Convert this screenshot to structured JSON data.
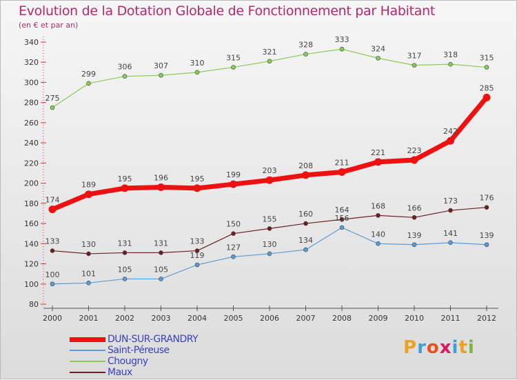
{
  "title": "Evolution de la Dotation Globale de Fonctionnement par Habitant",
  "subtitle": "(en € et par an)",
  "chart_data": {
    "type": "line",
    "title": "Evolution de la Dotation Globale de Fonctionnement par Habitant",
    "subtitle": "(en € et par an)",
    "x": [
      "2000",
      "2001",
      "2002",
      "2003",
      "2004",
      "2005",
      "2006",
      "2007",
      "2008",
      "2009",
      "2010",
      "2011",
      "2012"
    ],
    "ylim": [
      80,
      340
    ],
    "yticks": [
      80,
      100,
      120,
      140,
      160,
      180,
      200,
      220,
      240,
      260,
      280,
      300,
      320,
      340
    ],
    "grid": false,
    "legend_position": "bottom-left",
    "series": [
      {
        "name": "Chougny",
        "color": "#88cc55",
        "values": [
          275,
          299,
          306,
          307,
          310,
          315,
          321,
          328,
          333,
          324,
          317,
          318,
          315
        ]
      },
      {
        "name": "DUN-SUR-GRANDRY",
        "color": "#ee1111",
        "values": [
          174,
          189,
          195,
          196,
          195,
          199,
          203,
          208,
          211,
          221,
          223,
          242,
          285
        ]
      },
      {
        "name": "Maux",
        "color": "#6b1f24",
        "values": [
          133,
          130,
          131,
          131,
          133,
          150,
          155,
          160,
          164,
          168,
          166,
          173,
          176
        ]
      },
      {
        "name": "Saint-Péreuse",
        "color": "#5b9bd5",
        "values": [
          100,
          101,
          105,
          105,
          119,
          127,
          130,
          134,
          156,
          140,
          139,
          141,
          139
        ]
      }
    ],
    "point_labels": {
      "Chougny": [
        "275",
        "299",
        "306",
        "307",
        "310",
        "315",
        "321",
        "328",
        "333",
        "324",
        "317",
        "318",
        "315"
      ],
      "DUN-SUR-GRANDRY": [
        "174",
        "189",
        "195",
        "196",
        "195",
        "199",
        "203",
        "208",
        "211",
        "221",
        "223",
        "242",
        "285"
      ],
      "Maux": [
        "133",
        "130",
        "131",
        "131",
        "133",
        "150",
        "155",
        "160",
        "164",
        "168",
        "166",
        "173",
        "176"
      ],
      "Saint-Péreuse": [
        "100",
        "101",
        "105",
        "105",
        "119",
        "127",
        "130",
        "134",
        "156",
        "140",
        "139",
        "141",
        "139"
      ]
    }
  },
  "legend": [
    {
      "label": "DUN-SUR-GRANDRY",
      "color": "#ee1111",
      "thick": true
    },
    {
      "label": "Saint-Péreuse",
      "color": "#5b9bd5",
      "thick": false
    },
    {
      "label": "Chougny",
      "color": "#88cc55",
      "thick": false
    },
    {
      "label": "Maux",
      "color": "#6b1f24",
      "thick": false
    }
  ],
  "logo": {
    "letters": [
      "P",
      "r",
      "o",
      "x",
      "i",
      "t",
      "i"
    ],
    "colors": [
      "#f0a020",
      "#3aa0d8",
      "#e8501c",
      "#d81b60",
      "#3aa0d8",
      "#f0a020",
      "#7cb342"
    ]
  }
}
